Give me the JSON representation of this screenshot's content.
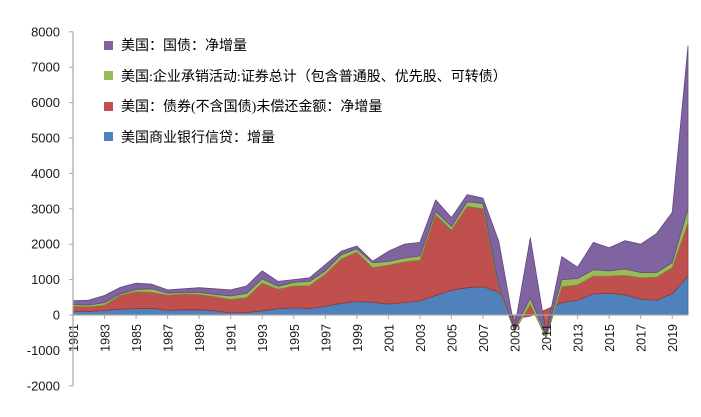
{
  "legend": [
    {
      "label": "美国：国债：净增量",
      "color": "#8064A2"
    },
    {
      "label": "美国:企业承销活动:证券总计（包含普通股、优先股、可转债）",
      "color": "#9BBB59"
    },
    {
      "label": "美国：债券(不含国债)未偿还金额：净增量",
      "color": "#C0504D"
    },
    {
      "label": "美国商业银行信贷：增量",
      "color": "#4F81BD"
    }
  ],
  "axis": {
    "y_ticks": [
      "8000",
      "7000",
      "6000",
      "5000",
      "4000",
      "3000",
      "2000",
      "1000",
      "0",
      "-1000",
      "-2000"
    ],
    "x_ticks": [
      "1981",
      "1983",
      "1985",
      "1987",
      "1989",
      "1991",
      "1993",
      "1995",
      "1997",
      "1999",
      "2001",
      "2003",
      "2005",
      "2007",
      "2009",
      "2011",
      "2013",
      "2015",
      "2017",
      "2019"
    ]
  },
  "colors": {
    "axis": "#A6A6A6",
    "background": "#FFFFFF",
    "text": "#1A1A1A"
  },
  "chart_data": {
    "type": "area",
    "stacked": true,
    "title": "",
    "xlabel": "",
    "ylabel": "",
    "ylim": [
      -2000,
      8000
    ],
    "ytick_step": 1000,
    "grid": false,
    "legend_position": "top-left-inside",
    "xtick_years": [
      1981,
      1983,
      1985,
      1987,
      1989,
      1991,
      1993,
      1995,
      1997,
      1999,
      2001,
      2003,
      2005,
      2007,
      2009,
      2011,
      2013,
      2015,
      2017,
      2019
    ],
    "x": [
      1981,
      1982,
      1983,
      1984,
      1985,
      1986,
      1987,
      1988,
      1989,
      1990,
      1991,
      1992,
      1993,
      1994,
      1995,
      1996,
      1997,
      1998,
      1999,
      2000,
      2001,
      2002,
      2003,
      2004,
      2005,
      2006,
      2007,
      2008,
      2009,
      2010,
      2011,
      2012,
      2013,
      2014,
      2015,
      2016,
      2017,
      2018,
      2019,
      2020
    ],
    "series": [
      {
        "id": "bank-credit",
        "name": "美国商业银行信贷：增量",
        "color": "#4F81BD",
        "edge": "#38609A",
        "values": [
          100,
          100,
          130,
          160,
          180,
          190,
          130,
          150,
          150,
          120,
          60,
          70,
          120,
          180,
          200,
          180,
          250,
          330,
          380,
          360,
          310,
          350,
          400,
          550,
          700,
          770,
          800,
          650,
          -100,
          -30,
          150,
          350,
          420,
          600,
          620,
          570,
          450,
          420,
          600,
          1100
        ]
      },
      {
        "id": "bonds-ex-treasury",
        "name": "美国：债券(不含国债)未偿还金额：净增量",
        "color": "#C0504D",
        "edge": "#953735",
        "values": [
          150,
          130,
          150,
          400,
          480,
          450,
          430,
          450,
          430,
          400,
          380,
          420,
          780,
          550,
          620,
          650,
          900,
          1250,
          1400,
          980,
          1100,
          1150,
          1150,
          2280,
          1700,
          2300,
          2200,
          100,
          -350,
          330,
          -800,
          450,
          430,
          500,
          480,
          550,
          600,
          650,
          740,
          1500
        ]
      },
      {
        "id": "underwriting-securities",
        "name": "美国:企业承销活动:证券总计（包含普通股、优先股、可转债）",
        "color": "#9BBB59",
        "edge": "#77933C",
        "values": [
          50,
          50,
          70,
          40,
          60,
          100,
          60,
          40,
          60,
          60,
          100,
          120,
          120,
          80,
          100,
          120,
          100,
          120,
          90,
          140,
          100,
          110,
          120,
          100,
          100,
          130,
          150,
          80,
          50,
          180,
          80,
          200,
          180,
          180,
          150,
          180,
          150,
          130,
          140,
          400
        ]
      },
      {
        "id": "treasury-net",
        "name": "美国：国债：净增量",
        "color": "#8064A2",
        "edge": "#604A7B",
        "values": [
          100,
          140,
          200,
          180,
          180,
          130,
          90,
          100,
          130,
          160,
          170,
          210,
          230,
          140,
          80,
          100,
          170,
          100,
          80,
          40,
          290,
          390,
          380,
          320,
          250,
          200,
          150,
          1250,
          20,
          1700,
          50,
          650,
          320,
          770,
          650,
          800,
          800,
          1100,
          1420,
          4600
        ]
      }
    ]
  }
}
